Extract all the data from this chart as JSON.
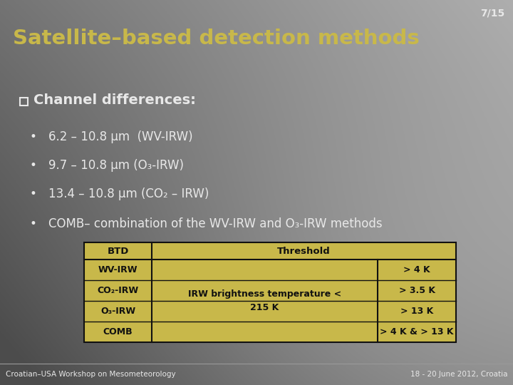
{
  "slide_number": "7/15",
  "title": "Satellite–based detection methods",
  "title_color": "#c8b84a",
  "checkbox_label": "Channel differences:",
  "bullets": [
    "6.2 – 10.8 μm  (WV-IRW)",
    "9.7 – 10.8 μm (O₃-IRW)",
    "13.4 – 10.8 μm (CO₂ – IRW)",
    "COMB– combination of the WV-IRW and O₃-IRW methods"
  ],
  "row_labels": [
    "WV-IRW",
    "CO₂-IRW",
    "O₃-IRW",
    "COMB"
  ],
  "row_right": [
    "> 4 K",
    "> 3.5 K",
    "> 13 K",
    "> 4 K & > 13 K"
  ],
  "middle_text": "IRW brightness temperature <\n215 K",
  "table_bg": "#c8b84a",
  "table_border": "#111111",
  "footer_left": "Croatian–USA Workshop on Mesometeorology",
  "footer_right": "18 - 20 June 2012, Croatia",
  "text_white": "#e8e8e8",
  "text_dark": "#111111"
}
